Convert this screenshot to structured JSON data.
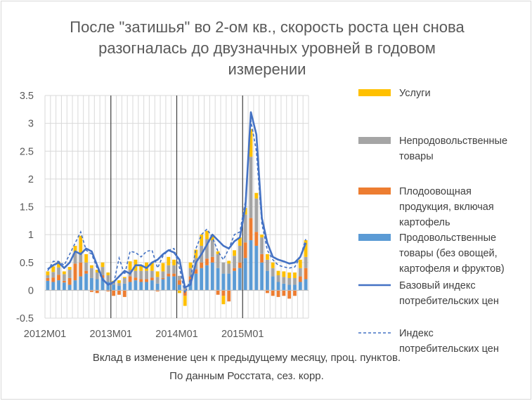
{
  "chart_data": {
    "type": "bar",
    "stacked": true,
    "title_lines": [
      "После \"затишья\" во 2-ом кв., скорость роста цен снова",
      "разогналась до двузначных уровней в годовом",
      "измерении"
    ],
    "caption_lines": [
      "Вклад в изменение цен к предыдущему месяцу, проц. пунктов.",
      "По данным Росстата, сез. корр."
    ],
    "ylim": [
      -0.5,
      3.5
    ],
    "yticks": [
      "-0.5",
      "0",
      "0.5",
      "1",
      "1.5",
      "2",
      "2.5",
      "3",
      "3.5"
    ],
    "ytick_values": [
      -0.5,
      0,
      0.5,
      1,
      1.5,
      2,
      2.5,
      3,
      3.5
    ],
    "xtick_labels": [
      "2012M01",
      "2013M01",
      "2014M01",
      "2015M01"
    ],
    "xtick_index": [
      0,
      12,
      24,
      36
    ],
    "grid": true,
    "legend_position": "right",
    "colors": {
      "services": "#FFC000",
      "nonfood": "#A5A5A5",
      "fruitveg": "#ED7D31",
      "food": "#5B9BD5",
      "core_line": "#4472C4",
      "cpi_line": "#4472C4",
      "grid": "#D9D9D9",
      "axis": "#BFBFBF"
    },
    "legend": [
      {
        "key": "services",
        "kind": "bar",
        "lines": [
          "Услуги"
        ]
      },
      {
        "key": "nonfood",
        "kind": "bar",
        "lines": [
          "Непродовольственные",
          "товары"
        ]
      },
      {
        "key": "fruitveg",
        "kind": "bar",
        "lines": [
          "Плодоовощная",
          "продукция, включая",
          "картофель"
        ]
      },
      {
        "key": "food",
        "kind": "bar",
        "lines": [
          "Продовольственные",
          "товары (без овощей,",
          "картофеля и фруктов)"
        ]
      },
      {
        "key": "core_line",
        "kind": "line",
        "lines": [
          "Базовый индекс",
          "потребительских цен"
        ]
      },
      {
        "key": "cpi_line",
        "kind": "dash",
        "lines": [
          "Индекс",
          "потребительских цен"
        ]
      }
    ],
    "series": [
      {
        "key": "food",
        "values": [
          0.17,
          0.15,
          0.18,
          0.14,
          0.1,
          0.18,
          0.25,
          0.3,
          0.22,
          0.2,
          0.22,
          0.15,
          0.1,
          0.08,
          0.12,
          0.15,
          0.18,
          0.15,
          0.15,
          0.18,
          0.12,
          0.2,
          0.25,
          0.25,
          0.1,
          -0.02,
          0.15,
          0.3,
          0.4,
          0.45,
          0.5,
          0.4,
          0.3,
          0.3,
          0.35,
          0.4,
          0.58,
          0.9,
          0.8,
          0.5,
          0.35,
          0.25,
          0.15,
          0.12,
          0.1,
          0.1,
          0.15,
          0.2
        ]
      },
      {
        "key": "fruitveg",
        "values": [
          0.05,
          0.08,
          0.1,
          0.03,
          0.12,
          0.3,
          0.25,
          0.05,
          -0.03,
          -0.05,
          0.05,
          -0.02,
          -0.1,
          -0.08,
          -0.12,
          0.1,
          0.05,
          0.05,
          0.05,
          0.05,
          -0.02,
          0.02,
          0.05,
          0.05,
          0.08,
          -0.08,
          0.1,
          0.08,
          0.1,
          0.12,
          0.1,
          -0.08,
          -0.1,
          -0.2,
          0.05,
          0.1,
          0.28,
          0.4,
          0.25,
          0.15,
          -0.05,
          -0.1,
          -0.12,
          -0.1,
          -0.15,
          -0.1,
          0.1,
          0.2
        ]
      },
      {
        "key": "nonfood",
        "values": [
          0.05,
          0.1,
          0.13,
          0.12,
          0.15,
          0.2,
          0.18,
          0.15,
          0.18,
          0.12,
          0.15,
          0.12,
          0.05,
          0.05,
          0.1,
          0.12,
          0.12,
          0.15,
          0.15,
          0.12,
          0.12,
          0.12,
          0.15,
          0.15,
          0.08,
          0.05,
          0.15,
          0.2,
          0.3,
          0.35,
          0.3,
          0.25,
          0.2,
          0.18,
          0.22,
          0.3,
          0.5,
          1.1,
          0.6,
          0.3,
          0.2,
          0.15,
          0.12,
          0.12,
          0.12,
          0.12,
          0.15,
          0.2
        ]
      },
      {
        "key": "services",
        "values": [
          0.07,
          0.1,
          0.1,
          0.05,
          0.05,
          0.12,
          0.3,
          0.15,
          0.05,
          0.05,
          0.08,
          0.05,
          0.02,
          0.05,
          0.02,
          0.15,
          0.2,
          0.1,
          0.15,
          0.15,
          0.1,
          0.15,
          0.15,
          0.1,
          -0.05,
          -0.18,
          0.1,
          0.15,
          0.2,
          0.15,
          0.1,
          0.05,
          -0.15,
          0.05,
          0.1,
          0.15,
          0.12,
          0.5,
          0.1,
          0.05,
          0.1,
          0.1,
          0.08,
          0.1,
          0.1,
          0.1,
          0.15,
          0.3
        ]
      }
    ],
    "core_line": [
      0.38,
      0.45,
      0.5,
      0.4,
      0.5,
      0.7,
      0.65,
      0.75,
      0.7,
      0.45,
      0.2,
      0.1,
      0.15,
      0.25,
      0.35,
      0.3,
      0.45,
      0.45,
      0.4,
      0.5,
      0.55,
      0.65,
      0.72,
      0.68,
      0.55,
      0.05,
      0.1,
      0.5,
      0.65,
      0.82,
      1.0,
      0.9,
      0.8,
      0.75,
      0.88,
      0.95,
      1.5,
      3.2,
      2.8,
      1.3,
      0.85,
      0.6,
      0.55,
      0.52,
      0.48,
      0.5,
      0.6,
      0.85
    ],
    "cpi_line": [
      0.35,
      0.52,
      0.52,
      0.45,
      0.65,
      0.85,
      1.05,
      0.72,
      0.65,
      0.4,
      0.18,
      0.1,
      0.12,
      0.58,
      0.28,
      0.7,
      0.68,
      0.6,
      0.7,
      0.72,
      0.4,
      0.62,
      0.72,
      0.75,
      0.4,
      -0.05,
      0.2,
      0.75,
      1.0,
      1.1,
      0.95,
      0.7,
      0.55,
      0.75,
      1.0,
      1.05,
      1.6,
      3.05,
      2.5,
      1.2,
      0.72,
      0.55,
      0.45,
      0.42,
      0.4,
      0.42,
      0.6,
      0.92
    ]
  }
}
